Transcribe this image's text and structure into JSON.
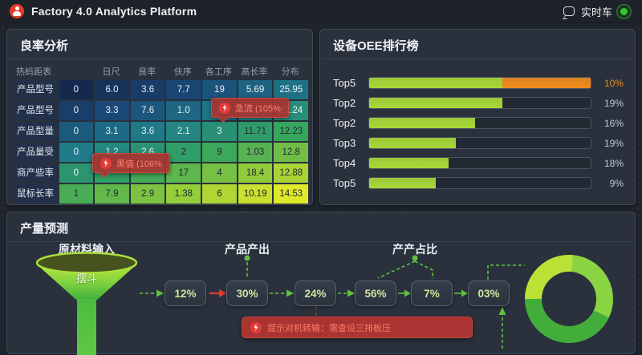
{
  "theme": {
    "green": "#5ec23e",
    "red": "#e23a2e",
    "orange": "#ef8c1e",
    "bar_green": "#a8d838",
    "status_green": "#36c62c",
    "panel_bg": "#2a313c"
  },
  "topbar": {
    "title": "Factory 4.0 Analytics Platform",
    "status_label": "实时车"
  },
  "yield_panel": {
    "title": "良率分析",
    "tooltips": [
      {
        "text": "急流 (105%",
        "row": 2
      },
      {
        "text": "黑值 (106%",
        "row": 5
      }
    ]
  },
  "oee_panel": {
    "title": "设备OEE排行榜"
  },
  "forecast_panel": {
    "title": "产量预测",
    "funnel_label": "原材料输入",
    "funnel_text": "摆斗",
    "output_label": "产品产出",
    "ratio_label": "产产占比",
    "alert_text": "提示对机转输：需查设三排板压"
  },
  "chart_data": [
    {
      "type": "heatmap",
      "title": "良率分析",
      "columns": [
        "热蚂距表",
        "日尺",
        "良率",
        "伕序",
        "各工序",
        "高长率",
        "分布"
      ],
      "rows": [
        {
          "label": "产品型号",
          "values": [
            "0",
            "6.0",
            "3.6",
            "7.7",
            "19",
            "5.69",
            "25.95"
          ]
        },
        {
          "label": "产品型号",
          "values": [
            "0",
            "3.3",
            "7.6",
            "1.0",
            "5",
            "",
            "12.24"
          ]
        },
        {
          "label": "产品型量",
          "values": [
            "0",
            "3.1",
            "3.6",
            "2.1",
            "3",
            "11.71",
            "12.23"
          ]
        },
        {
          "label": "产品量受",
          "values": [
            "0",
            "1.2",
            "2.6",
            "2",
            "9",
            "1.03",
            "12.8"
          ]
        },
        {
          "label": "商产些率",
          "values": [
            "0",
            "",
            "",
            "17",
            "4",
            "18.4",
            "12.88"
          ]
        },
        {
          "label": "鼠标长率",
          "values": [
            "1",
            "7.9",
            "2.9",
            "1.38",
            "6",
            "10.19",
            "14.53"
          ]
        }
      ],
      "color_scale": {
        "stops": [
          [
            0,
            "#14294e"
          ],
          [
            0.2,
            "#1a4a78"
          ],
          [
            0.4,
            "#217f8a"
          ],
          [
            0.6,
            "#33a45f"
          ],
          [
            0.8,
            "#8cc93c"
          ],
          [
            1,
            "#e0e929"
          ]
        ],
        "row_weight": 0.65,
        "col_weight": 0.35,
        "dark_text_threshold": 0.55
      }
    },
    {
      "type": "bar",
      "title": "设备OEE排行榜",
      "orientation": "horizontal",
      "categories": [
        "Top5",
        "Top2",
        "Top2",
        "Top3",
        "Top4",
        "Top5"
      ],
      "value_labels": [
        "10%",
        "19%",
        "16%",
        "19%",
        "18%",
        "9%"
      ],
      "value_colors": [
        "#ef8c1e",
        "#c2cad4",
        "#c2cad4",
        "#c2cad4",
        "#c2cad4",
        "#c2cad4"
      ],
      "fills": [
        {
          "segments": [
            {
              "pct": 60,
              "color": "#a8d838"
            },
            {
              "pct": 40,
              "color": "#ef8c1e"
            }
          ]
        },
        {
          "segments": [
            {
              "pct": 60,
              "color": "#a8d838"
            }
          ]
        },
        {
          "segments": [
            {
              "pct": 48,
              "color": "#a8d838"
            }
          ]
        },
        {
          "segments": [
            {
              "pct": 39,
              "color": "#a8d838"
            }
          ]
        },
        {
          "segments": [
            {
              "pct": 36,
              "color": "#a8d838"
            }
          ]
        },
        {
          "segments": [
            {
              "pct": 30,
              "color": "#a8d838"
            }
          ]
        }
      ]
    },
    {
      "type": "flow",
      "title": "产量预测",
      "steps": [
        "12%",
        "30%",
        "24%",
        "56%",
        "7%",
        "03%"
      ],
      "source_label": "原材料输入",
      "funnel_text": "摆斗",
      "annotations": [
        "产品产出",
        "产产占比"
      ]
    },
    {
      "type": "pie",
      "donut": true,
      "segments": [
        {
          "color": "#8ad342",
          "from": 5,
          "to": 115
        },
        {
          "color": "#43ad3c",
          "from": 115,
          "to": 270
        },
        {
          "color": "#bce136",
          "from": 270,
          "to": 365
        }
      ]
    }
  ]
}
